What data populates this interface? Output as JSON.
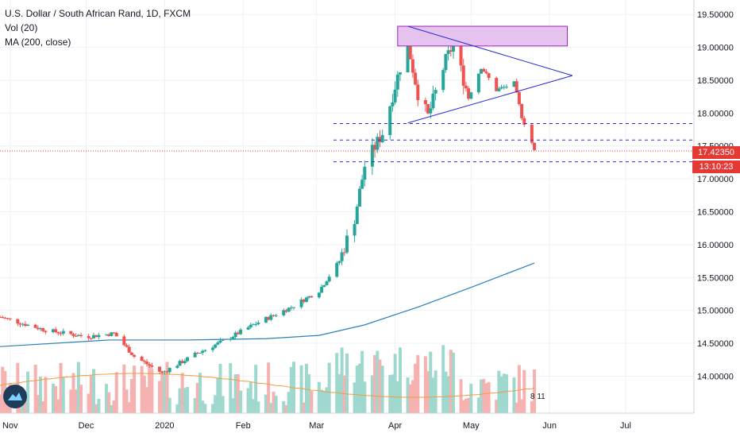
{
  "legend": {
    "symbol": "U.S. Dollar / South African Rand, 1D, FXCM",
    "vol": "Vol (20)",
    "ma": "MA (200, close)"
  },
  "price_axis": {
    "ticks": [
      "19.50000",
      "19.00000",
      "18.50000",
      "18.00000",
      "17.50000",
      "17.00000",
      "16.50000",
      "16.00000",
      "15.50000",
      "15.00000",
      "14.50000",
      "14.00000"
    ],
    "last_price": "17.42350",
    "countdown": "13:10:23"
  },
  "time_axis": {
    "labels": [
      "Nov",
      "Dec",
      "2020",
      "Feb",
      "Mar",
      "Apr",
      "May",
      "Jun",
      "Jul"
    ]
  },
  "volume_readout": "8 11",
  "colors": {
    "up": "#26a69a",
    "down": "#ef5350",
    "ma": "#2e7fb8",
    "vol_ma": "#f39c3d",
    "drawing": "#2c2cd6",
    "zone_fill": "#e6c3ef",
    "zone_stroke": "#9c27b0",
    "last_price": "#e53935"
  },
  "chart_data": {
    "type": "candlestick",
    "title": "U.S. Dollar / South African Rand, 1D, FXCM",
    "ylim": [
      13.8,
      19.55
    ],
    "x_range": [
      "2019-10-28",
      "2020-07-28"
    ],
    "ohlc_keyframes": [
      {
        "date": "2019-10-28",
        "close": 14.9
      },
      {
        "date": "2019-11-15",
        "close": 14.7
      },
      {
        "date": "2019-12-01",
        "close": 14.6
      },
      {
        "date": "2019-12-12",
        "close": 14.65
      },
      {
        "date": "2019-12-20",
        "close": 14.3
      },
      {
        "date": "2019-12-31",
        "close": 14.05
      },
      {
        "date": "2020-01-14",
        "close": 14.35
      },
      {
        "date": "2020-01-25",
        "close": 14.55
      },
      {
        "date": "2020-02-06",
        "close": 14.8
      },
      {
        "date": "2020-02-20",
        "close": 15.05
      },
      {
        "date": "2020-03-02",
        "close": 15.3
      },
      {
        "date": "2020-03-10",
        "close": 15.75
      },
      {
        "date": "2020-03-16",
        "close": 16.4
      },
      {
        "date": "2020-03-20",
        "close": 17.2
      },
      {
        "date": "2020-03-27",
        "close": 17.7
      },
      {
        "date": "2020-04-03",
        "close": 18.7
      },
      {
        "date": "2020-04-06",
        "close": 19.05
      },
      {
        "date": "2020-04-10",
        "close": 18.3
      },
      {
        "date": "2020-04-14",
        "close": 17.95
      },
      {
        "date": "2020-04-21",
        "close": 18.8
      },
      {
        "date": "2020-04-24",
        "close": 19.05
      },
      {
        "date": "2020-04-30",
        "close": 18.25
      },
      {
        "date": "2020-05-05",
        "close": 18.7
      },
      {
        "date": "2020-05-11",
        "close": 18.35
      },
      {
        "date": "2020-05-18",
        "close": 18.45
      },
      {
        "date": "2020-05-21",
        "close": 17.95
      },
      {
        "date": "2020-05-25",
        "close": 17.55
      },
      {
        "date": "2020-05-26",
        "close": 17.42
      }
    ],
    "ma200": [
      {
        "date": "2019-10-28",
        "value": 14.45
      },
      {
        "date": "2019-12-10",
        "value": 14.55
      },
      {
        "date": "2020-01-10",
        "value": 14.55
      },
      {
        "date": "2020-02-10",
        "value": 14.57
      },
      {
        "date": "2020-03-02",
        "value": 14.62
      },
      {
        "date": "2020-03-20",
        "value": 14.78
      },
      {
        "date": "2020-04-10",
        "value": 15.05
      },
      {
        "date": "2020-05-01",
        "value": 15.35
      },
      {
        "date": "2020-05-26",
        "value": 15.72
      }
    ],
    "zone": {
      "from": "2020-04-02",
      "to": "2020-06-08",
      "low": 19.02,
      "high": 19.32
    },
    "triangle": {
      "apex": {
        "date": "2020-06-10",
        "value": 18.57
      },
      "upper_start": {
        "date": "2020-04-06",
        "value": 19.32
      },
      "lower_start": {
        "date": "2020-04-06",
        "value": 17.85
      }
    },
    "levels": [
      17.84,
      17.59,
      17.26
    ],
    "last_price": 17.4235
  }
}
